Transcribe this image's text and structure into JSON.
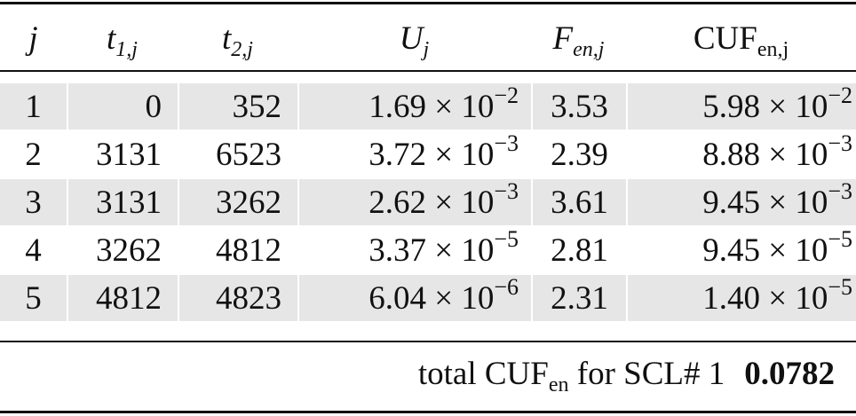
{
  "header": [
    {
      "base": "j",
      "sub": "",
      "italic": true
    },
    {
      "base": "t",
      "sub": "1,j",
      "italic": true
    },
    {
      "base": "t",
      "sub": "2,j",
      "italic": true
    },
    {
      "base": "U",
      "sub": "j",
      "italic": true
    },
    {
      "base": "F",
      "sub": "en,j",
      "italic": true
    },
    {
      "base": "CUF",
      "sub": "en,j",
      "italic": false
    }
  ],
  "times": "×",
  "rows": [
    {
      "j": "1",
      "t1": "0",
      "t2": "352",
      "U": {
        "m": "1.69",
        "b": "10",
        "e": "−2"
      },
      "F": "3.53",
      "CUF": {
        "m": "5.98",
        "b": "10",
        "e": "−2"
      }
    },
    {
      "j": "2",
      "t1": "3131",
      "t2": "6523",
      "U": {
        "m": "3.72",
        "b": "10",
        "e": "−3"
      },
      "F": "2.39",
      "CUF": {
        "m": "8.88",
        "b": "10",
        "e": "−3"
      }
    },
    {
      "j": "3",
      "t1": "3131",
      "t2": "3262",
      "U": {
        "m": "2.62",
        "b": "10",
        "e": "−3"
      },
      "F": "3.61",
      "CUF": {
        "m": "9.45",
        "b": "10",
        "e": "−3"
      }
    },
    {
      "j": "4",
      "t1": "3262",
      "t2": "4812",
      "U": {
        "m": "3.37",
        "b": "10",
        "e": "−5"
      },
      "F": "2.81",
      "CUF": {
        "m": "9.45",
        "b": "10",
        "e": "−5"
      }
    },
    {
      "j": "5",
      "t1": "4812",
      "t2": "4823",
      "U": {
        "m": "6.04",
        "b": "10",
        "e": "−6"
      },
      "F": "2.31",
      "CUF": {
        "m": "1.40",
        "b": "10",
        "e": "−5"
      }
    }
  ],
  "total": {
    "label_pre": "total CUF",
    "label_sub": "en",
    "label_post": " for SCL# 1",
    "value": "0.0782"
  },
  "colors": {
    "row_shade": "#e6e6e6",
    "rule": "#111111"
  }
}
